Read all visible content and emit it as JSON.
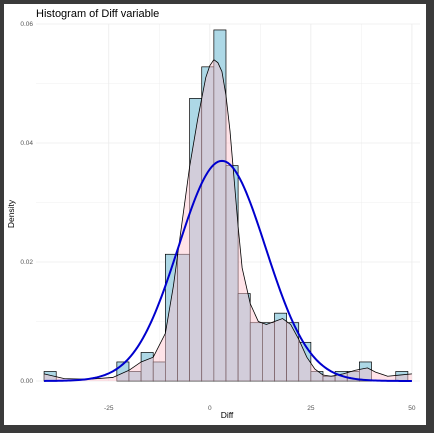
{
  "chart_data": {
    "type": "histogram",
    "title": "Histogram of Diff variable",
    "xlabel": "Diff",
    "ylabel": "Density",
    "xlim": [
      -43,
      52
    ],
    "ylim": [
      0,
      0.06
    ],
    "x_ticks": [
      -25,
      0,
      25,
      50
    ],
    "x_tick_labels": [
      "-25",
      "0",
      "25",
      "50"
    ],
    "y_ticks": [
      0,
      0.02,
      0.04,
      0.06
    ],
    "y_tick_labels": [
      "0.00",
      "0.02",
      "0.04",
      "0.06"
    ],
    "grid": true,
    "bin_width": 3,
    "bins": [
      {
        "x0": -41,
        "x1": -38,
        "density": 0.0016
      },
      {
        "x0": -38,
        "x1": -35,
        "density": 0
      },
      {
        "x0": -35,
        "x1": -32,
        "density": 0
      },
      {
        "x0": -32,
        "x1": -29,
        "density": 0
      },
      {
        "x0": -29,
        "x1": -26,
        "density": 0
      },
      {
        "x0": -26,
        "x1": -23,
        "density": 0
      },
      {
        "x0": -23,
        "x1": -20,
        "density": 0.0032
      },
      {
        "x0": -20,
        "x1": -17,
        "density": 0.0016
      },
      {
        "x0": -17,
        "x1": -14,
        "density": 0.0048
      },
      {
        "x0": -14,
        "x1": -11,
        "density": 0.0032
      },
      {
        "x0": -11,
        "x1": -8,
        "density": 0.0213
      },
      {
        "x0": -8,
        "x1": -5,
        "density": 0.0213
      },
      {
        "x0": -5,
        "x1": -2,
        "density": 0.0475
      },
      {
        "x0": -2,
        "x1": 1,
        "density": 0.0528
      },
      {
        "x0": 1,
        "x1": 4,
        "density": 0.059
      },
      {
        "x0": 4,
        "x1": 7,
        "density": 0.0362
      },
      {
        "x0": 7,
        "x1": 10,
        "density": 0.0147
      },
      {
        "x0": 10,
        "x1": 13,
        "density": 0.0098
      },
      {
        "x0": 13,
        "x1": 16,
        "density": 0.0098
      },
      {
        "x0": 16,
        "x1": 19,
        "density": 0.0114
      },
      {
        "x0": 19,
        "x1": 22,
        "density": 0.0098
      },
      {
        "x0": 22,
        "x1": 25,
        "density": 0.0065
      },
      {
        "x0": 25,
        "x1": 28,
        "density": 0.0016
      },
      {
        "x0": 28,
        "x1": 31,
        "density": 0.0008
      },
      {
        "x0": 31,
        "x1": 34,
        "density": 0.0016
      },
      {
        "x0": 34,
        "x1": 37,
        "density": 0.0016
      },
      {
        "x0": 37,
        "x1": 40,
        "density": 0.0032
      },
      {
        "x0": 40,
        "x1": 43,
        "density": 0
      },
      {
        "x0": 43,
        "x1": 46,
        "density": 0
      },
      {
        "x0": 46,
        "x1": 49,
        "density": 0.0016
      }
    ],
    "kde_curve": {
      "x": [
        -41,
        -36,
        -30,
        -24,
        -20,
        -17,
        -14,
        -11,
        -9,
        -7,
        -5,
        -3,
        -1,
        0,
        1,
        2,
        3,
        4,
        5,
        6,
        7,
        8,
        10,
        12,
        14,
        16,
        18,
        20,
        22,
        24,
        26,
        28,
        30,
        33,
        36,
        39,
        41,
        44,
        47,
        50
      ],
      "y": [
        0.0012,
        0.0004,
        0.0003,
        0.0006,
        0.0018,
        0.0032,
        0.004,
        0.008,
        0.016,
        0.026,
        0.036,
        0.044,
        0.051,
        0.053,
        0.054,
        0.0535,
        0.052,
        0.048,
        0.042,
        0.034,
        0.026,
        0.019,
        0.013,
        0.01,
        0.0095,
        0.01,
        0.0105,
        0.0095,
        0.007,
        0.004,
        0.002,
        0.001,
        0.0008,
        0.0012,
        0.0018,
        0.0022,
        0.0015,
        0.0008,
        0.001,
        0.0012
      ]
    },
    "normal_curve": {
      "mean": 3,
      "sd": 10.8,
      "peak": 0.037
    },
    "colors": {
      "bar_fill": "#add8e6",
      "bar_stroke": "#000000",
      "kde_fill": "#ffc0cb",
      "kde_stroke": "#000000",
      "normal_stroke": "#0000cd",
      "grid": "#ebebeb",
      "panel_border": "#3a3a3a"
    }
  }
}
